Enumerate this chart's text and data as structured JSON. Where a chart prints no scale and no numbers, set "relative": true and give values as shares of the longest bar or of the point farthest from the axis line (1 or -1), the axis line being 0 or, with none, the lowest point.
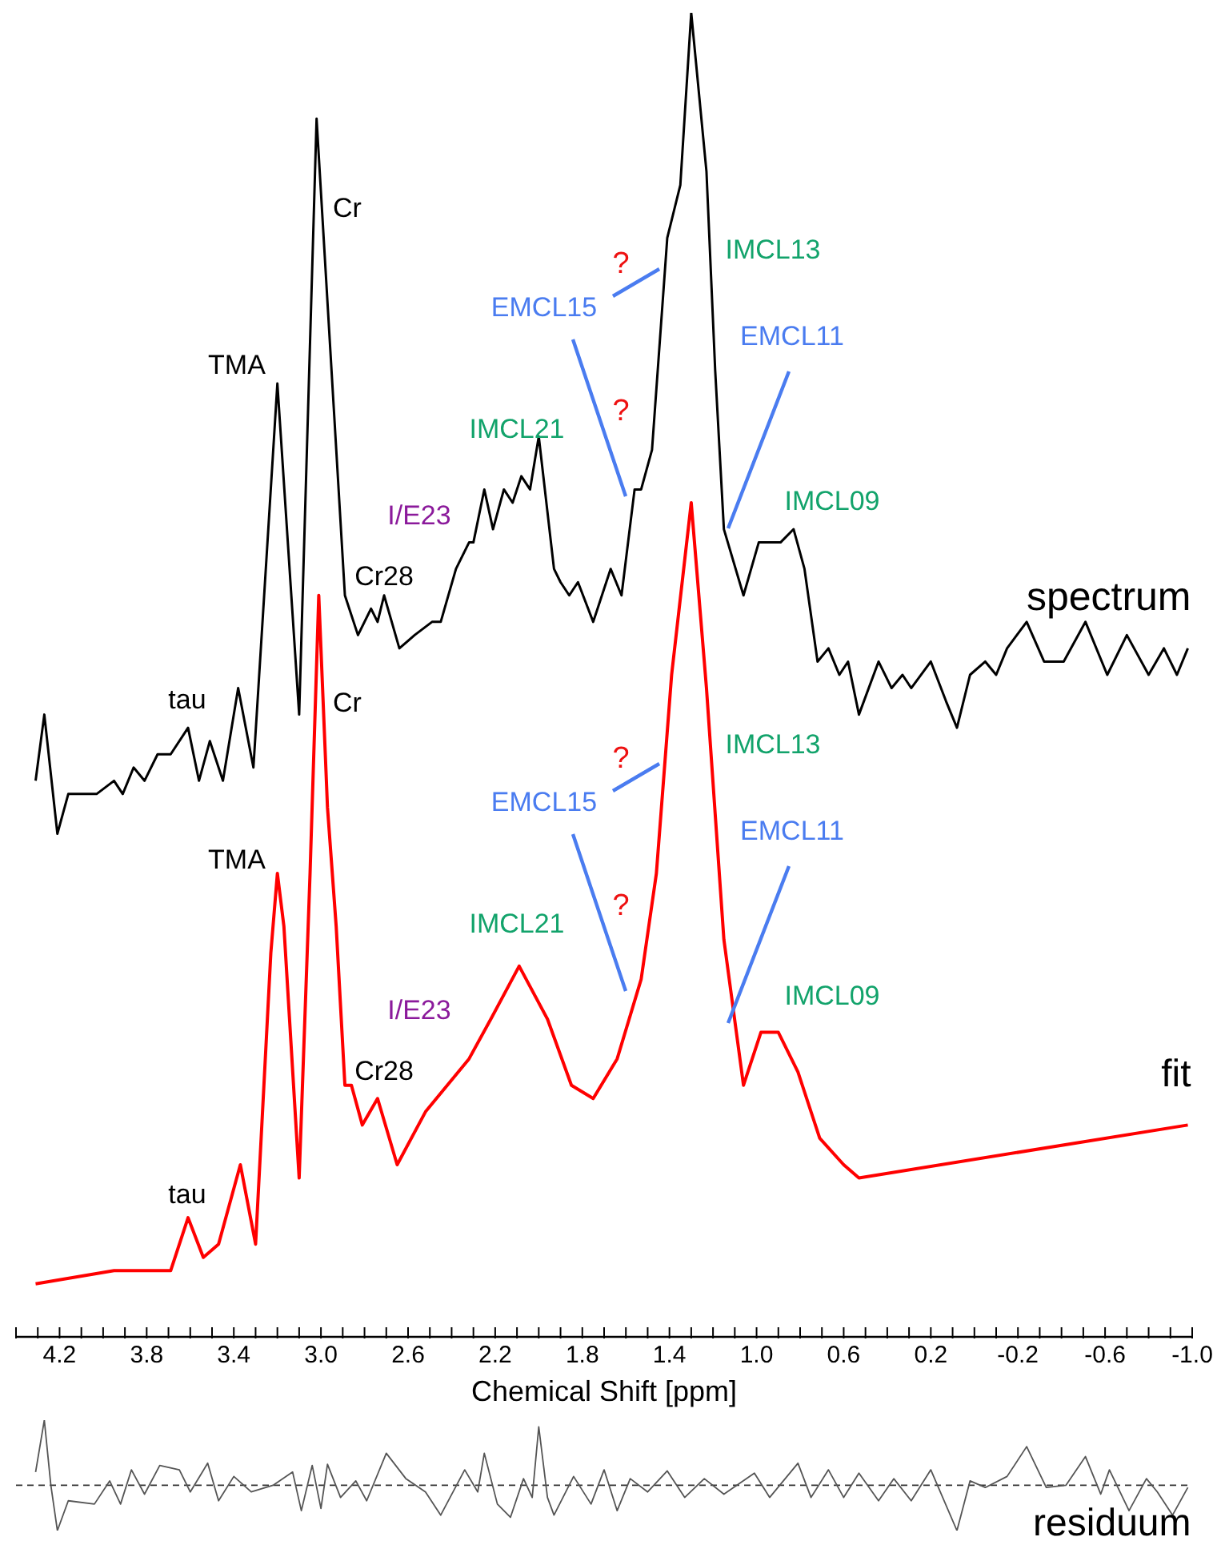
{
  "chart_data": [
    {
      "type": "line",
      "relative": true,
      "xlabel": "Chemical Shift [ppm]",
      "xlim": [
        4.4,
        -1.0
      ],
      "xticks": [
        {
          "value": 4.4,
          "label": null
        },
        {
          "value": 4.3,
          "label": null
        },
        4.2,
        {
          "value": 4.1,
          "label": null
        },
        {
          "value": 4.0,
          "label": null
        },
        {
          "value": 3.9,
          "label": null
        },
        3.8,
        {
          "value": 3.7,
          "label": null
        },
        {
          "value": 3.6,
          "label": null
        },
        {
          "value": 3.5,
          "label": null
        },
        3.4,
        {
          "value": 3.3,
          "label": null
        },
        {
          "value": 3.2,
          "label": null
        },
        {
          "value": 3.1,
          "label": null
        },
        {
          "value": 3.0,
          "label": "3.0"
        },
        {
          "value": 2.9,
          "label": null
        },
        {
          "value": 2.8,
          "label": null
        },
        {
          "value": 2.7,
          "label": null
        },
        2.6,
        {
          "value": 2.5,
          "label": null
        },
        {
          "value": 2.4,
          "label": null
        },
        {
          "value": 2.3,
          "label": null
        },
        2.2,
        {
          "value": 2.1,
          "label": null
        },
        {
          "value": 2.0,
          "label": null
        },
        {
          "value": 1.9,
          "label": null
        },
        1.8,
        {
          "value": 1.7,
          "label": null
        },
        {
          "value": 1.6,
          "label": null
        },
        {
          "value": 1.5,
          "label": null
        },
        1.4,
        {
          "value": 1.3,
          "label": null
        },
        {
          "value": 1.2,
          "label": null
        },
        {
          "value": 1.1,
          "label": null
        },
        {
          "value": 1.0,
          "label": "1.0"
        },
        {
          "value": 0.9,
          "label": null
        },
        {
          "value": 0.8,
          "label": null
        },
        {
          "value": 0.7,
          "label": null
        },
        0.6,
        {
          "value": 0.5,
          "label": null
        },
        {
          "value": 0.4,
          "label": null
        },
        {
          "value": 0.3,
          "label": null
        },
        0.2,
        {
          "value": 0.1,
          "label": null
        },
        {
          "value": 0,
          "label": null
        },
        {
          "value": -0.1,
          "label": null
        },
        -0.2,
        {
          "value": -0.3,
          "label": null
        },
        {
          "value": -0.4,
          "label": null
        },
        {
          "value": -0.5,
          "label": null
        },
        -0.6,
        {
          "value": -0.7,
          "label": null
        },
        {
          "value": -0.8,
          "label": null
        },
        {
          "value": -0.9,
          "label": null
        },
        {
          "value": -1.0,
          "label": "-1.0"
        }
      ],
      "tick_labels": "x",
      "legend": false,
      "grid": false,
      "marker": "none",
      "line_style": "solid",
      "series": [
        {
          "name": "spectrum",
          "color": "#000000",
          "x": [
            4.31,
            4.27,
            4.21,
            4.16,
            4.03,
            3.95,
            3.91,
            3.86,
            3.81,
            3.75,
            3.69,
            3.61,
            3.56,
            3.51,
            3.45,
            3.38,
            3.31,
            3.2,
            3.1,
            3.02,
            2.89,
            2.83,
            2.77,
            2.74,
            2.71,
            2.64,
            2.57,
            2.49,
            2.45,
            2.38,
            2.32,
            2.3,
            2.25,
            2.21,
            2.16,
            2.12,
            2.08,
            2.04,
            2.0,
            1.93,
            1.9,
            1.86,
            1.82,
            1.75,
            1.67,
            1.62,
            1.56,
            1.53,
            1.48,
            1.41,
            1.35,
            1.3,
            1.23,
            1.19,
            1.15,
            1.06,
            0.99,
            0.94,
            0.89,
            0.83,
            0.78,
            0.72,
            0.67,
            0.62,
            0.58,
            0.53,
            0.44,
            0.38,
            0.33,
            0.29,
            0.2,
            0.13,
            0.08,
            0.02,
            -0.05,
            -0.1,
            -0.15,
            -0.24,
            -0.32,
            -0.41,
            -0.51,
            -0.61,
            -0.7,
            -0.8,
            -0.87,
            -0.93,
            -0.98
          ],
          "values": [
            0.42,
            0.47,
            0.38,
            0.41,
            0.41,
            0.42,
            0.41,
            0.43,
            0.42,
            0.44,
            0.44,
            0.46,
            0.42,
            0.45,
            0.42,
            0.49,
            0.43,
            0.72,
            0.47,
            0.92,
            0.56,
            0.53,
            0.55,
            0.54,
            0.56,
            0.52,
            0.53,
            0.54,
            0.54,
            0.58,
            0.6,
            0.6,
            0.64,
            0.61,
            0.64,
            0.63,
            0.65,
            0.64,
            0.68,
            0.58,
            0.57,
            0.56,
            0.57,
            0.54,
            0.58,
            0.56,
            0.64,
            0.64,
            0.67,
            0.83,
            0.87,
            1,
            0.88,
            0.73,
            0.61,
            0.56,
            0.6,
            0.6,
            0.6,
            0.61,
            0.58,
            0.51,
            0.52,
            0.5,
            0.51,
            0.47,
            0.51,
            0.49,
            0.5,
            0.49,
            0.51,
            0.48,
            0.46,
            0.5,
            0.51,
            0.5,
            0.52,
            0.54,
            0.51,
            0.51,
            0.54,
            0.5,
            0.53,
            0.5,
            0.52,
            0.5,
            0.52
          ]
        },
        {
          "name": "fit",
          "color": "#ff0000",
          "x": [
            4.31,
            3.95,
            3.69,
            3.61,
            3.54,
            3.47,
            3.37,
            3.3,
            3.23,
            3.2,
            3.17,
            3.1,
            3.05,
            3.01,
            2.97,
            2.93,
            2.89,
            2.86,
            2.81,
            2.74,
            2.65,
            2.52,
            2.32,
            2.22,
            2.09,
            1.96,
            1.85,
            1.75,
            1.64,
            1.53,
            1.46,
            1.39,
            1.3,
            1.23,
            1.15,
            1.06,
            0.98,
            0.9,
            0.81,
            0.71,
            0.6,
            0.53,
            -0.98
          ],
          "values": [
            0.04,
            0.05,
            0.05,
            0.09,
            0.06,
            0.07,
            0.13,
            0.07,
            0.29,
            0.35,
            0.31,
            0.12,
            0.35,
            0.56,
            0.4,
            0.31,
            0.19,
            0.19,
            0.16,
            0.18,
            0.13,
            0.17,
            0.21,
            0.24,
            0.28,
            0.24,
            0.19,
            0.18,
            0.21,
            0.27,
            0.35,
            0.5,
            0.63,
            0.49,
            0.3,
            0.19,
            0.23,
            0.23,
            0.2,
            0.15,
            0.13,
            0.12,
            0.16
          ]
        }
      ],
      "annotations": [
        "tau",
        "TMA",
        "Cr",
        "Cr28",
        "I/E23",
        "IMCL21",
        "EMCL15",
        "?",
        "?",
        "IMCL13",
        "EMCL11",
        "IMCL09",
        "tau",
        "TMA",
        "Cr",
        "Cr28",
        "I/E23",
        "IMCL21",
        "EMCL15",
        "?",
        "?",
        "IMCL13",
        "EMCL11",
        "IMCL09"
      ]
    },
    {
      "type": "line",
      "relative": true,
      "xlim": [
        4.4,
        -1.0
      ],
      "tick_labels": false,
      "legend": false,
      "grid": false,
      "marker": "none",
      "line_style": "solid",
      "ref_lines": [
        {
          "axis": "y",
          "value": 0.41,
          "line_style": "dashed",
          "color": "#333333"
        }
      ],
      "series": [
        {
          "name": "residuum",
          "color": "#555555",
          "x": [
            4.31,
            4.27,
            4.24,
            4.21,
            4.16,
            4.04,
            3.97,
            3.92,
            3.87,
            3.81,
            3.74,
            3.65,
            3.6,
            3.52,
            3.47,
            3.4,
            3.32,
            3.22,
            3.13,
            3.09,
            3.04,
            3.0,
            2.97,
            2.91,
            2.84,
            2.79,
            2.7,
            2.61,
            2.52,
            2.45,
            2.34,
            2.28,
            2.25,
            2.19,
            2.13,
            2.07,
            2.03,
            2.0,
            1.96,
            1.93,
            1.84,
            1.76,
            1.7,
            1.64,
            1.58,
            1.5,
            1.41,
            1.33,
            1.24,
            1.15,
            1.01,
            0.94,
            0.81,
            0.75,
            0.67,
            0.6,
            0.53,
            0.44,
            0.37,
            0.29,
            0.2,
            0.08,
            0.02,
            -0.05,
            -0.15,
            -0.24,
            -0.33,
            -0.42,
            -0.51,
            -0.58,
            -0.62,
            -0.71,
            -0.79,
            -0.84,
            -0.91,
            -0.98
          ],
          "values": [
            0.53,
            1,
            0.41,
            0,
            0.27,
            0.24,
            0.45,
            0.24,
            0.55,
            0.33,
            0.59,
            0.55,
            0.35,
            0.61,
            0.27,
            0.49,
            0.35,
            0.41,
            0.53,
            0.18,
            0.59,
            0.2,
            0.6,
            0.3,
            0.45,
            0.27,
            0.7,
            0.47,
            0.35,
            0.14,
            0.55,
            0.35,
            0.7,
            0.24,
            0.12,
            0.47,
            0.3,
            0.94,
            0.3,
            0.14,
            0.49,
            0.24,
            0.55,
            0.18,
            0.47,
            0.35,
            0.54,
            0.3,
            0.47,
            0.33,
            0.52,
            0.3,
            0.61,
            0.3,
            0.55,
            0.3,
            0.52,
            0.27,
            0.47,
            0.27,
            0.55,
            0,
            0.45,
            0.39,
            0.49,
            0.76,
            0.39,
            0.41,
            0.67,
            0.33,
            0.55,
            0.18,
            0.47,
            0.35,
            0.14,
            0.39
          ]
        }
      ]
    }
  ]
}
